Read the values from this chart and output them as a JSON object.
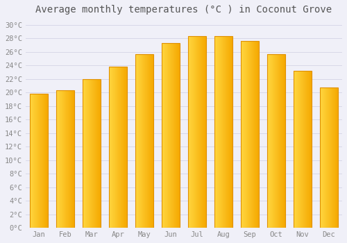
{
  "title": "Average monthly temperatures (°C ) in Coconut Grove",
  "months": [
    "Jan",
    "Feb",
    "Mar",
    "Apr",
    "May",
    "Jun",
    "Jul",
    "Aug",
    "Sep",
    "Oct",
    "Nov",
    "Dec"
  ],
  "values": [
    19.8,
    20.3,
    22.0,
    23.8,
    25.7,
    27.3,
    28.4,
    28.4,
    27.6,
    25.7,
    23.2,
    20.8
  ],
  "bar_color_left": "#FFD740",
  "bar_color_right": "#F5A800",
  "bar_edge_color": "#E09000",
  "background_color": "#F0F0F8",
  "grid_color": "#D8D8E8",
  "text_color": "#888888",
  "title_color": "#555555",
  "ytick_labels": [
    "0°C",
    "2°C",
    "4°C",
    "6°C",
    "8°C",
    "10°C",
    "12°C",
    "14°C",
    "16°C",
    "18°C",
    "20°C",
    "22°C",
    "24°C",
    "26°C",
    "28°C",
    "30°C"
  ],
  "ytick_values": [
    0,
    2,
    4,
    6,
    8,
    10,
    12,
    14,
    16,
    18,
    20,
    22,
    24,
    26,
    28,
    30
  ],
  "ylim": [
    0,
    31
  ],
  "title_fontsize": 10,
  "tick_fontsize": 7.5,
  "font_family": "monospace",
  "bar_width": 0.7,
  "n_gradient_steps": 50
}
